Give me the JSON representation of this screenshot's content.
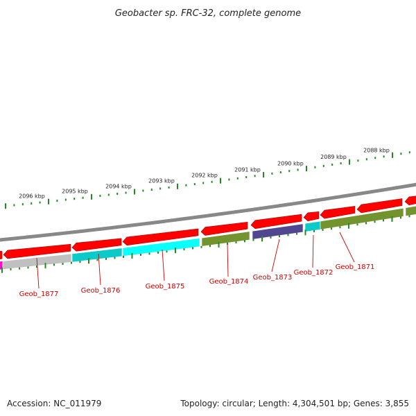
{
  "title": "Geobacter sp. FRC-32, complete genome",
  "footer": {
    "accession": "Accession: NC_011979",
    "topology": "Topology: circular; Length: 4,304,501 bp; Genes: 3,855"
  },
  "scale_labels": [
    "2096 kbp",
    "2095 kbp",
    "2094 kbp",
    "2093 kbp",
    "2092 kbp",
    "2091 kbp",
    "2090 kbp",
    "2089 kbp",
    "2088 kbp"
  ],
  "gene_labels": [
    "Geob_1877",
    "Geob_1876",
    "Geob_1875",
    "Geob_1874",
    "Geob_1873",
    "Geob_1872",
    "Geob_1871"
  ],
  "colors": {
    "cds": "#ff0000",
    "cog_grey": "#bdbdbd",
    "cog_cyan": "#00c8c8",
    "cog_bright_cyan": "#00ffff",
    "cog_olive": "#6b8e23",
    "cog_navy": "#483d8b",
    "cog_magenta": "#ff00c8",
    "backbone": "#888888",
    "ticks": "#228b22",
    "label": "#cc0000"
  }
}
